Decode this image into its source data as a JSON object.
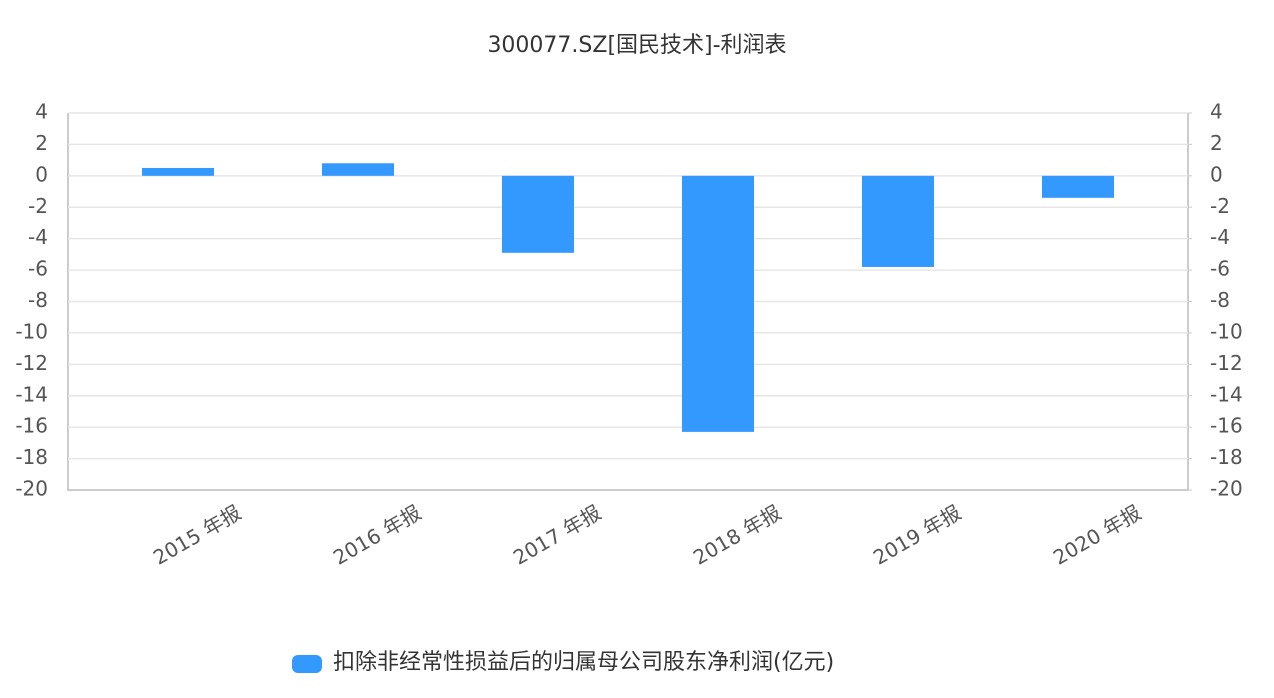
{
  "chart_data": {
    "type": "bar",
    "title": "300077.SZ[国民技术]-利润表",
    "categories": [
      "2015 年报",
      "2016 年报",
      "2017 年报",
      "2018 年报",
      "2019 年报",
      "2020 年报"
    ],
    "series": [
      {
        "name": "扣除非经常性损益后的归属母公司股东净利润(亿元)",
        "color": "#3399ff",
        "values": [
          0.5,
          0.8,
          -4.9,
          -16.3,
          -5.8,
          -1.4
        ]
      }
    ],
    "ylim": [
      -20,
      4
    ],
    "yticks": [
      4,
      2,
      0,
      -2,
      -4,
      -6,
      -8,
      -10,
      -12,
      -14,
      -16,
      -18,
      -20
    ],
    "y2lim": [
      -20,
      4
    ],
    "y2ticks": [
      4,
      2,
      0,
      -2,
      -4,
      -6,
      -8,
      -10,
      -12,
      -14,
      -16,
      -18,
      -20
    ],
    "grid": true
  }
}
